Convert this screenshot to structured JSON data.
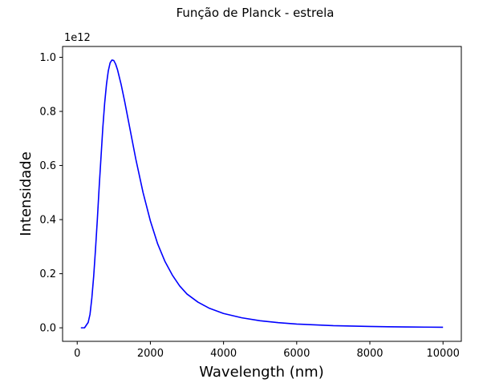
{
  "chart_data": {
    "type": "line",
    "title": "Função de Planck - estrela",
    "xlabel": "Wavelength (nm)",
    "ylabel": "Intensidade",
    "y_offset_label": "1e12",
    "xlim": [
      -400,
      10500
    ],
    "ylim": [
      -0.05,
      1.04
    ],
    "xticks": [
      0,
      2000,
      4000,
      6000,
      8000,
      10000
    ],
    "xtick_labels": [
      "0",
      "2000",
      "4000",
      "6000",
      "8000",
      "10000"
    ],
    "yticks": [
      0.0,
      0.2,
      0.4,
      0.6,
      0.8,
      1.0
    ],
    "ytick_labels": [
      "0.0",
      "0.2",
      "0.4",
      "0.6",
      "0.8",
      "1.0"
    ],
    "grid": false,
    "line_color": "#0000ff",
    "series": [
      {
        "x": [
          100,
          200,
          300,
          350,
          400,
          450,
          500,
          550,
          600,
          650,
          700,
          750,
          800,
          850,
          900,
          950,
          1000,
          1050,
          1100,
          1200,
          1300,
          1400,
          1500,
          1600,
          1800,
          2000,
          2200,
          2400,
          2600,
          2800,
          3000,
          3300,
          3600,
          4000,
          4500,
          5000,
          5500,
          6000,
          6500,
          7000,
          7500,
          8000,
          8500,
          9000,
          9500,
          10000
        ],
        "y": [
          0.0,
          0.0,
          0.02,
          0.05,
          0.11,
          0.19,
          0.29,
          0.4,
          0.52,
          0.63,
          0.74,
          0.83,
          0.9,
          0.95,
          0.98,
          0.99,
          0.988,
          0.975,
          0.955,
          0.9,
          0.835,
          0.765,
          0.695,
          0.625,
          0.5,
          0.395,
          0.31,
          0.245,
          0.195,
          0.155,
          0.125,
          0.095,
          0.073,
          0.053,
          0.037,
          0.026,
          0.019,
          0.014,
          0.011,
          0.008,
          0.0065,
          0.005,
          0.004,
          0.0032,
          0.0026,
          0.002
        ]
      }
    ]
  }
}
